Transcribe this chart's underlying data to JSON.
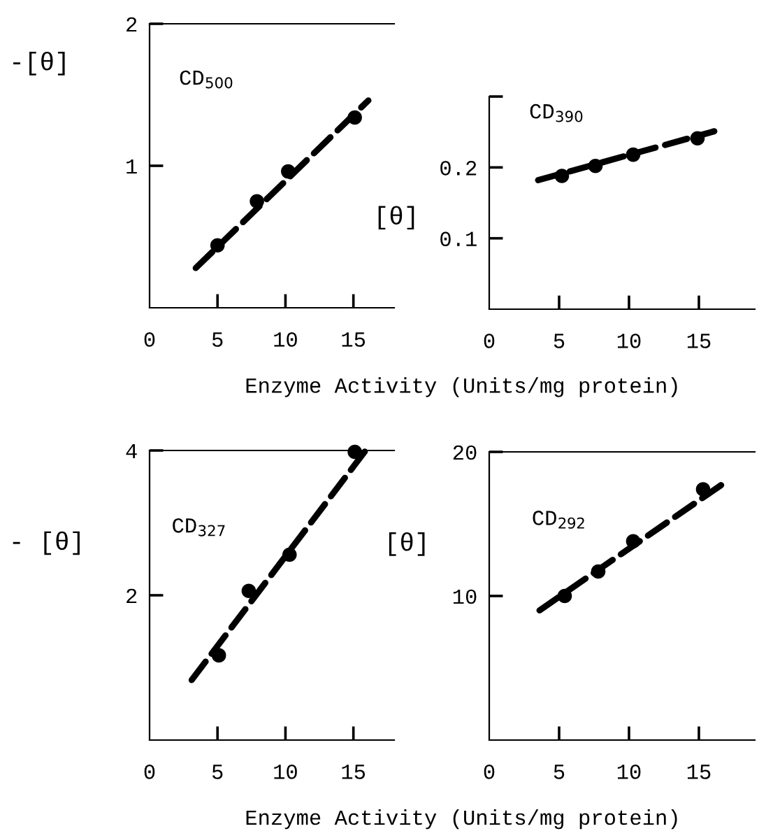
{
  "chart_data": [
    {
      "type": "scatter",
      "title": "CD$_{500}$",
      "ylabel": "-[θ]",
      "xlim": [
        0,
        18
      ],
      "xticks": [
        0,
        5,
        10,
        15
      ],
      "ylim": [
        0,
        2
      ],
      "yticks": [
        1,
        2
      ],
      "series": [
        {
          "marker": "circle",
          "color": "#000000",
          "x": [
            5.0,
            7.9,
            10.2,
            15.1
          ],
          "values": [
            0.44,
            0.75,
            0.96,
            1.34
          ]
        },
        {
          "type": "line",
          "marker": "none",
          "color": "#000000",
          "line_style": "dashed",
          "x": [
            3.4,
            16.1
          ],
          "values": [
            0.28,
            1.46
          ]
        }
      ]
    },
    {
      "type": "scatter",
      "title": "CD$_{390}$",
      "ylabel": "[θ]",
      "xlabel": "Enzyme Activity (Units/mg protein)",
      "xlim": [
        0,
        19
      ],
      "xticks": [
        0,
        5,
        10,
        15
      ],
      "ylim": [
        0,
        0.3
      ],
      "yticks": [
        0.1,
        0.2,
        {
          "value": 0.3,
          "label": null
        }
      ],
      "series": [
        {
          "marker": "circle",
          "color": "#000000",
          "x": [
            5.2,
            7.6,
            10.3,
            14.9
          ],
          "values": [
            0.188,
            0.202,
            0.218,
            0.241
          ]
        },
        {
          "type": "line",
          "marker": "none",
          "color": "#000000",
          "line_style": "dashed",
          "x": [
            3.5,
            16.1
          ],
          "values": [
            0.182,
            0.251
          ]
        }
      ]
    },
    {
      "type": "scatter",
      "title": "CD$_{327}$",
      "ylabel": "- [θ]",
      "xlim": [
        0,
        18
      ],
      "xticks": [
        0,
        5,
        10,
        15
      ],
      "ylim": [
        0,
        4
      ],
      "yticks": [
        2,
        4
      ],
      "series": [
        {
          "marker": "circle",
          "color": "#000000",
          "x": [
            5.1,
            7.3,
            10.3,
            15.1
          ],
          "values": [
            1.17,
            2.06,
            2.56,
            3.98
          ]
        },
        {
          "type": "line",
          "marker": "none",
          "color": "#000000",
          "line_style": "dashed",
          "x": [
            3.1,
            15.9
          ],
          "values": [
            0.83,
            4.0
          ]
        }
      ]
    },
    {
      "type": "scatter",
      "title": "CD$_{292}$",
      "ylabel": "[θ]",
      "xlabel": "Enzyme Activity (Units/mg protein)",
      "xlim": [
        0,
        19
      ],
      "xticks": [
        0,
        5,
        10,
        15
      ],
      "ylim": [
        0,
        20
      ],
      "yticks": [
        10,
        20
      ],
      "series": [
        {
          "marker": "circle",
          "color": "#000000",
          "x": [
            5.4,
            7.8,
            10.3,
            15.3
          ],
          "values": [
            10.0,
            11.7,
            13.8,
            17.4
          ]
        },
        {
          "type": "line",
          "marker": "none",
          "color": "#000000",
          "line_style": "dashed",
          "x": [
            3.6,
            16.6
          ],
          "values": [
            9.0,
            17.7
          ]
        }
      ]
    }
  ]
}
